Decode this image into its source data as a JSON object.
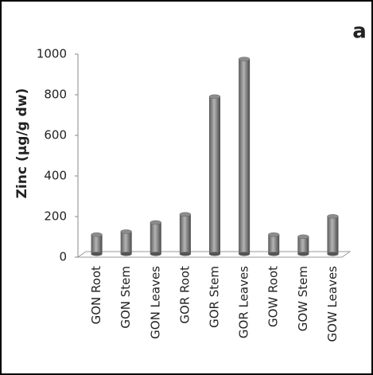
{
  "chart_data": {
    "type": "bar",
    "annotation": "a",
    "y_label": "Zinc (µg/g dw)",
    "categories": [
      "GON Root",
      "GON Stem",
      "GON Leaves",
      "GOR Root",
      "GOR Stem",
      "GOR Leaves",
      "GOW Root",
      "GOW Stem",
      "GOW Leaves"
    ],
    "values": [
      95,
      110,
      155,
      195,
      775,
      960,
      95,
      85,
      185
    ],
    "color": "#8c8c8c",
    "ylim": [
      0,
      1000
    ],
    "yticks": [
      0,
      200,
      400,
      600,
      800,
      1000
    ],
    "grid": false
  }
}
